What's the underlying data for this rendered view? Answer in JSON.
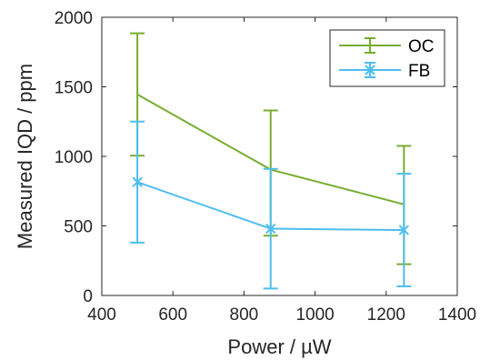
{
  "chart_data": {
    "type": "line",
    "xlabel": "Power / µW",
    "ylabel": "Measured IQD / ppm",
    "xlim": [
      400,
      1400
    ],
    "ylim": [
      0,
      2000
    ],
    "xticks": [
      "400",
      "600",
      "800",
      "1000",
      "1200",
      "1400"
    ],
    "yticks": [
      "0",
      "500",
      "1000",
      "1500",
      "2000"
    ],
    "grid": false,
    "legend_position": "top-right",
    "series": [
      {
        "name": "OC",
        "color": "#77ac30",
        "marker": "none",
        "x": [
          500,
          875,
          1250
        ],
        "y": [
          1445,
          905,
          655
        ],
        "err_low": [
          1005,
          430,
          225
        ],
        "err_high": [
          1885,
          1330,
          1075
        ]
      },
      {
        "name": "FB",
        "color": "#4dbeee",
        "marker": "x",
        "x": [
          500,
          875,
          1250
        ],
        "y": [
          815,
          480,
          470
        ],
        "err_low": [
          380,
          50,
          65
        ],
        "err_high": [
          1250,
          910,
          875
        ]
      }
    ]
  }
}
